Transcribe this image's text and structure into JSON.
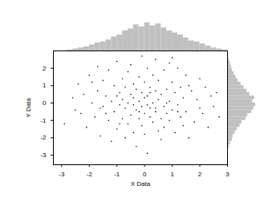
{
  "chart_data": [
    {
      "type": "scatter",
      "x_label": "X Data",
      "y_label": "Y Data",
      "x": [
        -2.9,
        -2.6,
        -2.4,
        -2.3,
        -2.2,
        -2.1,
        -2.0,
        -1.9,
        -1.8,
        -1.7,
        -1.7,
        -1.6,
        -1.5,
        -1.5,
        -1.4,
        -1.3,
        -1.3,
        -1.2,
        -1.2,
        -1.1,
        -1.1,
        -1.0,
        -1.0,
        -0.9,
        -0.9,
        -0.8,
        -0.8,
        -0.8,
        -0.7,
        -0.7,
        -0.7,
        -0.6,
        -0.6,
        -0.6,
        -0.5,
        -0.5,
        -0.5,
        -0.4,
        -0.4,
        -0.4,
        -0.3,
        -0.3,
        -0.3,
        -0.2,
        -0.2,
        -0.2,
        -0.1,
        -0.1,
        -0.1,
        -0.1,
        0.0,
        0.0,
        0.0,
        0.1,
        0.1,
        0.1,
        0.1,
        0.2,
        0.2,
        0.2,
        0.3,
        0.3,
        0.3,
        0.4,
        0.4,
        0.4,
        0.5,
        0.5,
        0.5,
        0.6,
        0.6,
        0.6,
        0.7,
        0.7,
        0.7,
        0.8,
        0.8,
        0.9,
        0.9,
        0.9,
        1.0,
        1.0,
        1.1,
        1.1,
        1.2,
        1.2,
        1.3,
        1.3,
        1.4,
        1.4,
        1.5,
        1.5,
        1.6,
        1.7,
        1.8,
        1.9,
        2.0,
        2.1,
        2.2,
        2.3,
        2.4,
        2.5,
        2.6,
        2.7,
        -2.5,
        -1.9,
        -1.4,
        -0.9,
        -0.4,
        0.0,
        0.4,
        0.8,
        1.2,
        1.6,
        2.0,
        -1.6,
        -1.0,
        -0.2,
        0.2,
        1.0
      ],
      "values": [
        -1.2,
        0.3,
        1.1,
        -0.6,
        0.5,
        -1.4,
        1.6,
        0.0,
        -0.8,
        2.1,
        0.7,
        -1.9,
        1.3,
        -0.2,
        0.4,
        -1.0,
        1.9,
        -2.2,
        0.1,
        1.0,
        -0.5,
        2.4,
        -1.5,
        0.6,
        -0.1,
        1.4,
        -0.9,
        0.2,
        -2.0,
        0.9,
        -0.3,
        1.8,
        -1.2,
        0.0,
        0.5,
        -0.7,
        2.2,
        1.1,
        -1.7,
        0.3,
        -0.4,
        0.8,
        -2.5,
        1.5,
        -0.9,
        0.1,
        2.7,
        -0.2,
        0.6,
        -1.3,
        1.2,
        -0.6,
        -1.8,
        0.4,
        -0.1,
        2.0,
        -2.9,
        0.9,
        -0.8,
        -0.3,
        1.6,
        0.0,
        -1.1,
        -0.5,
        0.7,
        2.5,
        -1.6,
        0.2,
        1.3,
        -0.9,
        0.5,
        -2.1,
        1.9,
        -0.2,
        -1.4,
        0.8,
        -0.6,
        2.3,
        0.1,
        -1.0,
        -0.4,
        1.2,
        0.6,
        -1.7,
        2.0,
        -0.1,
        0.9,
        -0.8,
        -1.3,
        0.3,
        1.6,
        -0.5,
        -2.0,
        0.7,
        -1.1,
        0.2,
        1.4,
        -0.6,
        0.9,
        -1.4,
        0.4,
        -0.2,
        0.6,
        -0.8,
        -0.4,
        1.2,
        -0.6,
        -1.2,
        -0.1,
        0.3,
        -0.3,
        0.0,
        -0.5,
        1.0,
        -0.3,
        -0.3,
        0.4,
        -0.5,
        0.6,
        2.6
      ],
      "color": "#000000",
      "marker": "dot",
      "xlim": [
        -3.3,
        3.0
      ],
      "ylim": [
        -3.55,
        3.0
      ],
      "xticks": [
        -3,
        -2,
        -1,
        0,
        1,
        2,
        3
      ],
      "yticks": [
        -3,
        -2,
        -1,
        0,
        1,
        2
      ],
      "grid": false
    },
    {
      "type": "histogram",
      "bins": [
        -2.8,
        -2.6,
        -2.4,
        -2.2,
        -2.0,
        -1.8,
        -1.6,
        -1.4,
        -1.2,
        -1.0,
        -0.8,
        -0.6,
        -0.4,
        -0.2,
        0.0,
        0.2,
        0.4,
        0.6,
        0.8,
        1.0,
        1.2,
        1.4,
        1.6,
        1.8,
        2.0,
        2.2,
        2.4,
        2.6,
        2.8,
        3.0
      ],
      "values": [
        1,
        2,
        3,
        4,
        6,
        8,
        9,
        11,
        14,
        16,
        20,
        22,
        26,
        24,
        28,
        25,
        27,
        23,
        20,
        18,
        16,
        13,
        10,
        9,
        7,
        5,
        3,
        2,
        1
      ],
      "color": "#c0c0c0",
      "tick_labels": false
    },
    {
      "type": "histogram",
      "orientation": "horizontal",
      "bins": [
        -2.6,
        -2.4,
        -2.2,
        -2.0,
        -1.8,
        -1.6,
        -1.4,
        -1.2,
        -1.0,
        -0.8,
        -0.6,
        -0.4,
        -0.2,
        0.0,
        0.2,
        0.4,
        0.6,
        0.8,
        1.0,
        1.2,
        1.4,
        1.6,
        1.8,
        2.0,
        2.2,
        2.4,
        2.6
      ],
      "values": [
        1,
        2,
        4,
        5,
        7,
        9,
        12,
        14,
        18,
        20,
        24,
        26,
        28,
        25,
        27,
        22,
        19,
        16,
        13,
        10,
        8,
        6,
        4,
        3,
        2,
        1
      ],
      "color": "#c0c0c0",
      "tick_labels": false
    }
  ]
}
